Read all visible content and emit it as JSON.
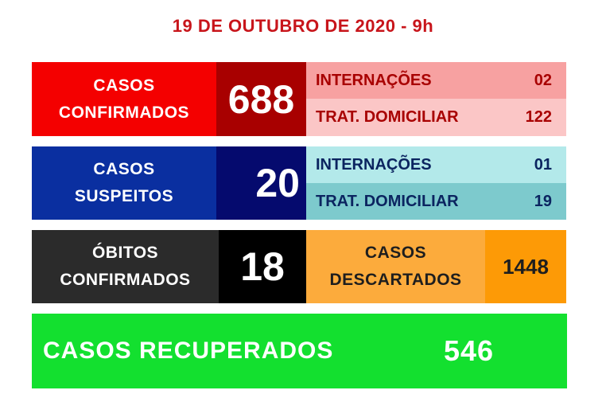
{
  "title": "19 DE OUTUBRO DE 2020 - 9h",
  "confirmados": {
    "label1": "CASOS",
    "label2": "CONFIRMADOS",
    "value": "688",
    "internacoes_label": "INTERNAÇÕES",
    "internacoes_value": "02",
    "domiciliar_label": "TRAT. DOMICILIAR",
    "domiciliar_value": "122"
  },
  "suspeitos": {
    "label1": "CASOS",
    "label2": "SUSPEITOS",
    "value": "20",
    "internacoes_label": "INTERNAÇÕES",
    "internacoes_value": "01",
    "domiciliar_label": "TRAT. DOMICILIAR",
    "domiciliar_value": "19"
  },
  "obitos": {
    "label1": "ÓBITOS",
    "label2": "CONFIRMADOS",
    "value": "18"
  },
  "descartados": {
    "label1": "CASOS",
    "label2": "DESCARTADOS",
    "value": "1448"
  },
  "recuperados": {
    "label": "CASOS RECUPERADOS",
    "value": "546"
  },
  "colors": {
    "red": "#f40000",
    "dark_red": "#a80000",
    "pink": "#f7a1a1",
    "light_pink": "#fbc6c6",
    "blue": "#0a2fa0",
    "navy": "#050a6e",
    "light_cyan": "#b3e9ea",
    "teal": "#7dcacd",
    "dark_gray": "#2b2b2b",
    "black": "#000000",
    "orange": "#fcab3c",
    "dark_orange": "#fd9a06",
    "green": "#13e02f"
  }
}
